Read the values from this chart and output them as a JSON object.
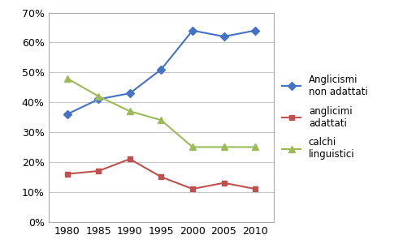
{
  "years": [
    1980,
    1985,
    1990,
    1995,
    2000,
    2005,
    2010
  ],
  "series": [
    {
      "label": "Anglicismi\nnon adattati",
      "values": [
        0.36,
        0.41,
        0.43,
        0.51,
        0.64,
        0.62,
        0.64
      ],
      "color": "#4472C4",
      "marker": "D",
      "markersize": 5,
      "linewidth": 1.5
    },
    {
      "label": "anglicimi\nadattati",
      "values": [
        0.16,
        0.17,
        0.21,
        0.15,
        0.11,
        0.13,
        0.11
      ],
      "color": "#C0504D",
      "marker": "s",
      "markersize": 5,
      "linewidth": 1.5
    },
    {
      "label": "calchi\nlinguistici",
      "values": [
        0.48,
        0.42,
        0.37,
        0.34,
        0.25,
        0.25,
        0.25
      ],
      "color": "#9BBB59",
      "marker": "^",
      "markersize": 6,
      "linewidth": 1.5
    }
  ],
  "ylim": [
    0.0,
    0.7
  ],
  "yticks": [
    0.0,
    0.1,
    0.2,
    0.3,
    0.4,
    0.5,
    0.6,
    0.7
  ],
  "xticks": [
    1980,
    1985,
    1990,
    1995,
    2000,
    2005,
    2010
  ],
  "xlim": [
    1977,
    2013
  ],
  "grid_color": "#BBBBBB",
  "spine_color": "#AAAAAA",
  "background_color": "#FFFFFF",
  "tick_labelsize": 9,
  "legend_fontsize": 8.5,
  "legend_labelspacing": 0.9,
  "legend_handlelength": 2.0,
  "figsize": [
    4.96,
    3.11
  ],
  "dpi": 100
}
